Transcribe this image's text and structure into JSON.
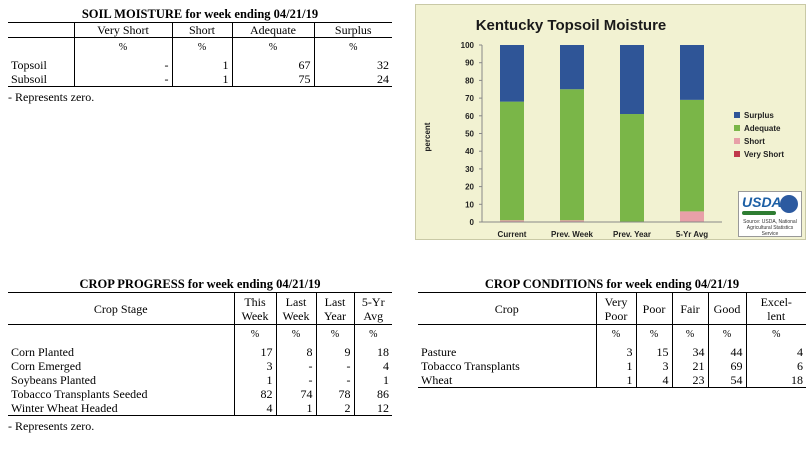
{
  "soil_moisture": {
    "title": "SOIL MOISTURE for week ending 04/21/19",
    "columns": [
      "",
      "Very Short",
      "Short",
      "Adequate",
      "Surplus"
    ],
    "units": [
      "",
      "%",
      "%",
      "%",
      "%"
    ],
    "rows": [
      [
        "Topsoil",
        "-",
        "1",
        "67",
        "32"
      ],
      [
        "Subsoil",
        "-",
        "1",
        "75",
        "24"
      ]
    ],
    "note": "- Represents zero."
  },
  "chart_data": {
    "type": "bar",
    "stacked": true,
    "title": "Kentucky Topsoil Moisture",
    "ylabel": "percent",
    "xlabel": "",
    "ylim": [
      0,
      100
    ],
    "yticks": [
      0,
      10,
      20,
      30,
      40,
      50,
      60,
      70,
      80,
      90,
      100
    ],
    "categories": [
      "Current",
      "Prev. Week",
      "Prev. Year",
      "5-Yr Avg"
    ],
    "series": [
      {
        "name": "Very Short",
        "color": "#c0394b",
        "values": [
          0,
          0,
          0,
          0
        ]
      },
      {
        "name": "Short",
        "color": "#e8a0a8",
        "values": [
          1,
          1,
          0,
          6
        ]
      },
      {
        "name": "Adequate",
        "color": "#7ab648",
        "values": [
          67,
          74,
          61,
          63
        ]
      },
      {
        "name": "Surplus",
        "color": "#2f5597",
        "values": [
          32,
          25,
          39,
          31
        ]
      }
    ],
    "legend_order": [
      "Surplus",
      "Adequate",
      "Short",
      "Very Short"
    ],
    "legend_position": "right",
    "grid": false
  },
  "logo": {
    "word": "USDA",
    "sub": "Source: USDA, National Agricultural Statistics Service"
  },
  "crop_progress": {
    "title": "CROP PROGRESS for week ending 04/21/19",
    "columns": [
      "Crop Stage",
      "This Week",
      "Last Week",
      "Last Year",
      "5-Yr Avg"
    ],
    "units": [
      "",
      "%",
      "%",
      "%",
      "%"
    ],
    "rows": [
      [
        "Corn Planted",
        "17",
        "8",
        "9",
        "18"
      ],
      [
        "Corn Emerged",
        "3",
        "-",
        "-",
        "4"
      ],
      [
        "Soybeans Planted",
        "1",
        "-",
        "-",
        "1"
      ],
      [
        "Tobacco Transplants Seeded",
        "82",
        "74",
        "78",
        "86"
      ],
      [
        "Winter Wheat Headed",
        "4",
        "1",
        "2",
        "12"
      ]
    ],
    "note": "- Represents zero."
  },
  "crop_conditions": {
    "title": "CROP CONDITIONS for week ending 04/21/19",
    "columns": [
      "Crop",
      "Very Poor",
      "Poor",
      "Fair",
      "Good",
      "Excel-lent"
    ],
    "units": [
      "",
      "%",
      "%",
      "%",
      "%",
      "%"
    ],
    "rows": [
      [
        "Pasture",
        "3",
        "15",
        "34",
        "44",
        "4"
      ],
      [
        "Tobacco Transplants",
        "1",
        "3",
        "21",
        "69",
        "6"
      ],
      [
        "Wheat",
        "1",
        "4",
        "23",
        "54",
        "18"
      ]
    ]
  }
}
